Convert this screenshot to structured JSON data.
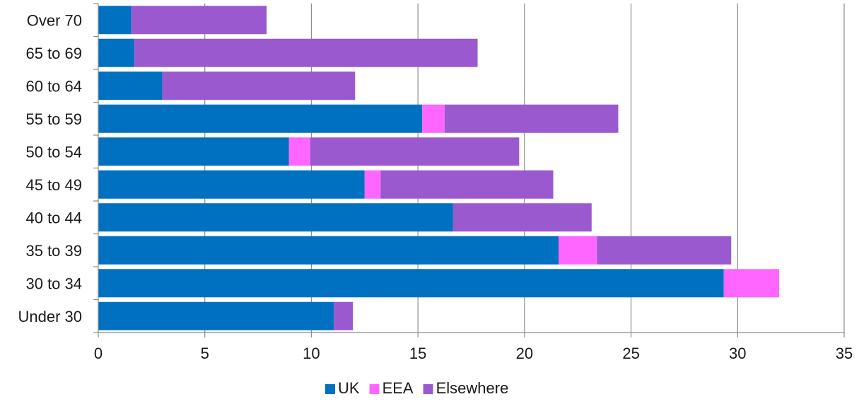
{
  "chart_data": {
    "type": "bar",
    "orientation": "horizontal",
    "stacked": true,
    "title": "",
    "xlabel": "",
    "ylabel": "",
    "categories": [
      "Under 30",
      "30 to 34",
      "35 to 39",
      "40 to 44",
      "45 to 49",
      "50 to 54",
      "55 to 59",
      "60 to 64",
      "65 to 69",
      "Over 70"
    ],
    "series": [
      {
        "name": "UK",
        "color": "#0070c0",
        "values": [
          11.05,
          29.35,
          21.6,
          16.65,
          12.5,
          8.95,
          15.2,
          3.0,
          1.7,
          1.55
        ]
      },
      {
        "name": "EEA",
        "color": "#ff66ff",
        "values": [
          0.0,
          2.6,
          1.8,
          0.0,
          0.75,
          1.0,
          1.05,
          0.0,
          0.0,
          0.0
        ]
      },
      {
        "name": "Elsewhere",
        "color": "#9b59d0",
        "values": [
          0.9,
          0.0,
          6.3,
          6.5,
          8.1,
          9.8,
          8.15,
          9.05,
          16.1,
          6.35
        ]
      }
    ],
    "xlim": [
      0,
      35
    ],
    "xticks": [
      "0",
      "5",
      "10",
      "15",
      "20",
      "25",
      "30",
      "35"
    ],
    "grid": "vertical",
    "legend_position": "bottom"
  }
}
